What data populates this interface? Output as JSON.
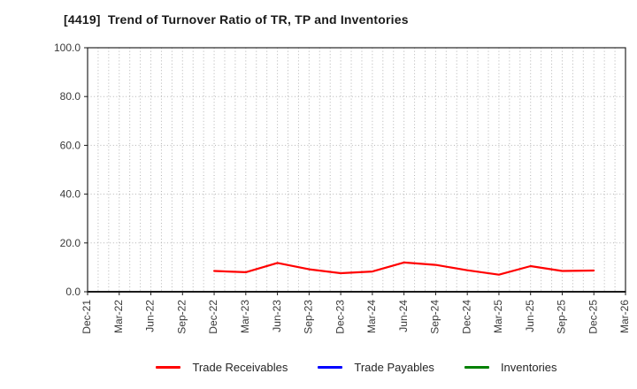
{
  "title": {
    "text": "[4419]  Trend of Turnover Ratio of TR, TP and Inventories"
  },
  "colors": {
    "background": "#ffffff",
    "grid": "#b3b3b3",
    "frame": "#262626",
    "axis": "#1a1a1a",
    "tick_text": "#3a3a3a",
    "title_text": "#1a1a1a",
    "legend_text": "#262626",
    "trade_receivables": "#ff0000",
    "trade_payables": "#0000ff",
    "inventories": "#008000"
  },
  "chart_data": {
    "type": "line",
    "title": "[4419]  Trend of Turnover Ratio of TR, TP and Inventories",
    "xlabel": "",
    "ylabel": "",
    "ylim": [
      0,
      100
    ],
    "y_ticks": [
      "0.0",
      "20.0",
      "40.0",
      "60.0",
      "80.0",
      "100.0"
    ],
    "x_labels": [
      "Dec-21",
      "Mar-22",
      "Jun-22",
      "Sep-22",
      "Dec-22",
      "Mar-23",
      "Jun-23",
      "Sep-23",
      "Dec-23",
      "Mar-24",
      "Jun-24",
      "Sep-24",
      "Dec-24",
      "Mar-25",
      "Jun-25",
      "Sep-25",
      "Dec-25",
      "Mar-26"
    ],
    "grid": {
      "style": "dotted",
      "vertical": "monthly",
      "horizontal": "every 20 units"
    },
    "legend_position": "bottom-center",
    "series": [
      {
        "name": "Trade Receivables",
        "color": "#ff0000",
        "x": [
          "Dec-22",
          "Mar-23",
          "Jun-23",
          "Sep-23",
          "Dec-23",
          "Mar-24",
          "Jun-24",
          "Sep-24",
          "Dec-24",
          "Mar-25",
          "Jun-25",
          "Sep-25",
          "Dec-25"
        ],
        "values": [
          8.5,
          8.0,
          11.8,
          9.2,
          7.6,
          8.3,
          12.0,
          11.0,
          8.8,
          7.0,
          10.5,
          8.5,
          8.7
        ]
      },
      {
        "name": "Trade Payables",
        "color": "#0000ff",
        "x": [],
        "values": []
      },
      {
        "name": "Inventories",
        "color": "#008000",
        "x": [],
        "values": []
      }
    ]
  }
}
